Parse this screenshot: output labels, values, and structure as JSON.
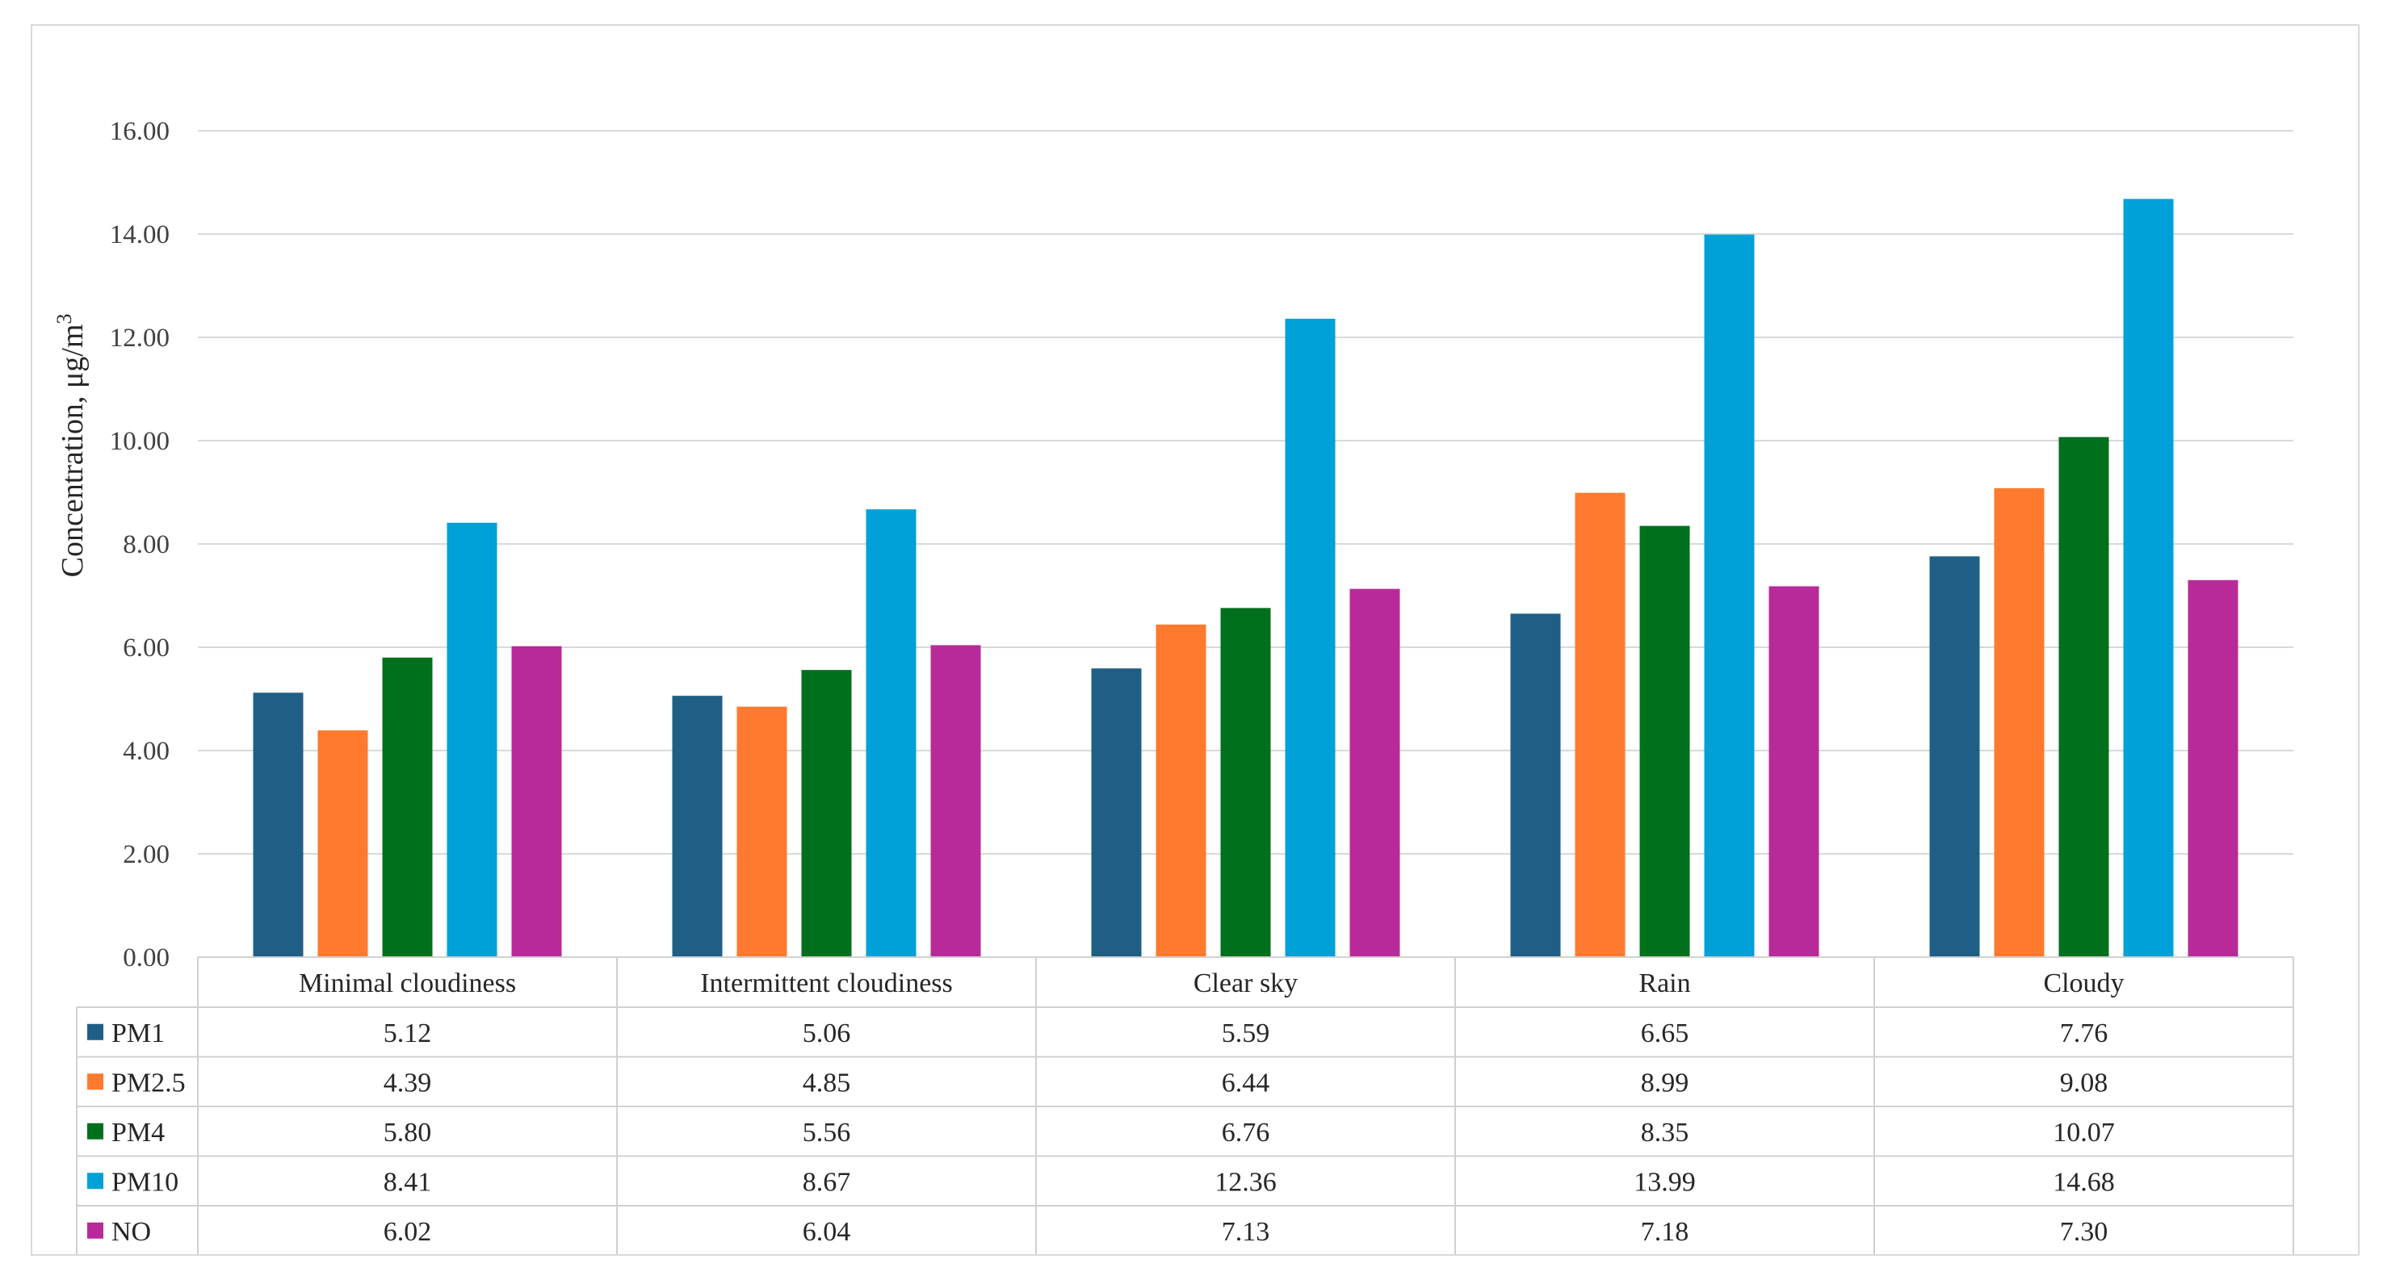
{
  "chart_data": {
    "type": "bar",
    "title": "",
    "xlabel": "",
    "ylabel": "Concentration, μg/m",
    "ylabel_superscript": "3",
    "ylim": [
      0,
      16
    ],
    "yticks": [
      "0.00",
      "2.00",
      "4.00",
      "6.00",
      "8.00",
      "10.00",
      "12.00",
      "14.00",
      "16.00"
    ],
    "grid": true,
    "legend": "data-table",
    "categories": [
      "Minimal cloudiness",
      "Intermittent cloudiness",
      "Clear sky",
      "Rain",
      "Cloudy"
    ],
    "series": [
      {
        "name": "PM1",
        "color": "#1F5F85",
        "values": [
          5.12,
          5.06,
          5.59,
          6.65,
          7.76
        ],
        "labels": [
          "5.12",
          "5.06",
          "5.59",
          "6.65",
          "7.76"
        ]
      },
      {
        "name": "PM2.5",
        "color": "#FF7A2E",
        "values": [
          4.39,
          4.85,
          6.44,
          8.99,
          9.08
        ],
        "labels": [
          "4.39",
          "4.85",
          "6.44",
          "8.99",
          "9.08"
        ]
      },
      {
        "name": "PM4",
        "color": "#00701D",
        "values": [
          5.8,
          5.56,
          6.76,
          8.35,
          10.07
        ],
        "labels": [
          "5.80",
          "5.56",
          "6.76",
          "8.35",
          "10.07"
        ]
      },
      {
        "name": "PM10",
        "color": "#00A0D8",
        "values": [
          8.41,
          8.67,
          12.36,
          13.99,
          14.68
        ],
        "labels": [
          "8.41",
          "8.67",
          "12.36",
          "13.99",
          "14.68"
        ]
      },
      {
        "name": "NO",
        "color": "#B82A99",
        "values": [
          6.02,
          6.04,
          7.13,
          7.18,
          7.3
        ],
        "labels": [
          "6.02",
          "6.04",
          "7.13",
          "7.18",
          "7.30"
        ]
      }
    ]
  }
}
